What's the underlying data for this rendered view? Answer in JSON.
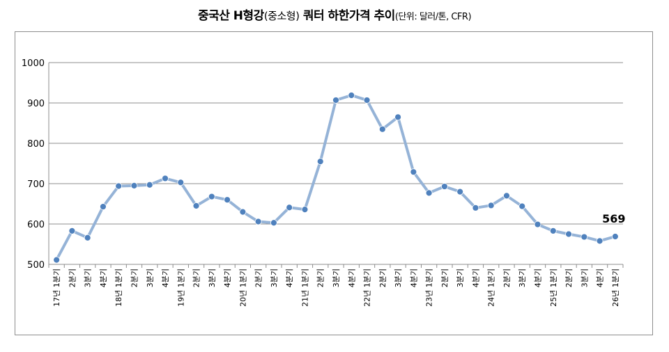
{
  "title": {
    "main": "중국산 H형강",
    "paren": "(중소형)",
    "rest": " 쿼터 하한가격 추이",
    "unit": "(단위: 달러/톤, CFR)"
  },
  "chart_data": {
    "type": "line",
    "title": "중국산 H형강(중소형) 쿼터 하한가격 추이(단위: 달러/톤, CFR)",
    "xlabel": "",
    "ylabel": "",
    "ylim": [
      500,
      1000
    ],
    "yticks": [
      500,
      600,
      700,
      800,
      900,
      1000
    ],
    "grid": true,
    "legend": "none",
    "line_color": "#95b3d7",
    "marker_color": "#4f81bd",
    "categories": [
      "17년 1분기",
      "2분기",
      "3분기",
      "4분기",
      "18년 1분기",
      "2분기",
      "3분기",
      "4분기",
      "19년 1분기",
      "2분기",
      "3분기",
      "4분기",
      "20년 1분기",
      "2분기",
      "3분기",
      "4분기",
      "21년 1분기",
      "2분기",
      "3분기",
      "4분기",
      "22년 1분기",
      "2분기",
      "3분기",
      "4분기",
      "23년 1분기",
      "2분기",
      "3분기",
      "4분기",
      "24년 1분기",
      "2분기",
      "3분기",
      "4분기",
      "25년 1분기",
      "2분기",
      "3분기",
      "4분기",
      "26년 1분기"
    ],
    "values": [
      511,
      583,
      566,
      643,
      694,
      695,
      697,
      713,
      703,
      645,
      668,
      660,
      630,
      606,
      603,
      641,
      636,
      755,
      907,
      919,
      907,
      835,
      865,
      729,
      677,
      693,
      680,
      640,
      646,
      670,
      644,
      599,
      583,
      575,
      568,
      558,
      569
    ],
    "annotation": {
      "index": 36,
      "text": "569"
    }
  }
}
